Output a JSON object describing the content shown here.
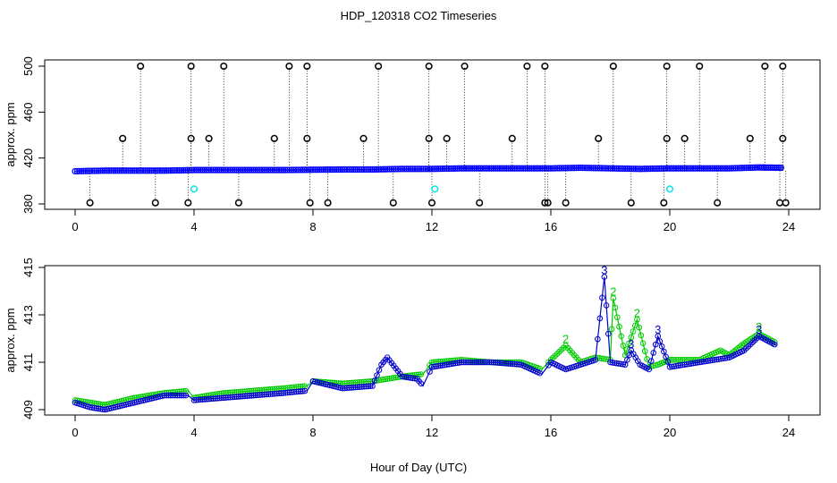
{
  "title": "HDP_120318  CO2 Timeseries",
  "xlabel": "Hour of Day (UTC)",
  "chart_data": [
    {
      "type": "scatter",
      "ylabel": "approx. ppm",
      "xlim": [
        0,
        24
      ],
      "ylim": [
        380,
        500
      ],
      "x_ticks": [
        0,
        4,
        8,
        12,
        16,
        20,
        24
      ],
      "y_ticks": [
        380,
        420,
        460,
        500
      ],
      "grid": false,
      "series": [
        {
          "color": "#0000ff",
          "marker": "circle",
          "x": [
            0,
            1,
            2,
            3,
            4,
            5,
            6,
            7,
            8,
            9,
            10,
            11,
            12,
            13,
            14,
            15,
            16,
            17,
            18,
            19,
            20,
            21,
            22,
            23,
            23.8
          ],
          "y": [
            408.5,
            409,
            409,
            409,
            409.5,
            409.5,
            409.5,
            409.5,
            409.8,
            410,
            410,
            410.5,
            410.5,
            411,
            411,
            411,
            411,
            411.5,
            411,
            410.5,
            411,
            411,
            411,
            411.8,
            411.5
          ]
        },
        {
          "color": "#000000",
          "marker": "circle",
          "x": [
            0.5,
            1.6,
            2.2,
            2.7,
            3.8,
            3.9,
            3.9,
            4.5,
            5.0,
            5.5,
            6.7,
            7.2,
            7.8,
            7.8,
            7.9,
            8.5,
            9.7,
            10.2,
            10.7,
            11.9,
            11.9,
            12.0,
            12.5,
            13.1,
            13.6,
            14.7,
            15.2,
            15.8,
            15.8,
            15.9,
            16.5,
            17.6,
            18.1,
            18.7,
            19.8,
            19.9,
            19.9,
            20.5,
            21.0,
            21.6,
            22.7,
            23.2,
            23.7,
            23.8,
            23.8,
            23.9
          ],
          "y": [
            381,
            437,
            500,
            381,
            381,
            437,
            500,
            437,
            500,
            381,
            437,
            500,
            437,
            500,
            381,
            381,
            437,
            500,
            381,
            437,
            500,
            381,
            437,
            500,
            381,
            437,
            500,
            381,
            500,
            381,
            381,
            437,
            500,
            381,
            381,
            437,
            500,
            437,
            500,
            381,
            437,
            500,
            381,
            437,
            500,
            381
          ]
        },
        {
          "color": "#00e5ee",
          "marker": "circle",
          "x": [
            4.0,
            12.1,
            20.0
          ],
          "y": [
            393,
            393,
            393
          ]
        }
      ]
    },
    {
      "type": "line",
      "ylabel": "approx. ppm",
      "xlim": [
        0,
        24
      ],
      "ylim": [
        409,
        415
      ],
      "x_ticks": [
        0,
        4,
        8,
        12,
        16,
        20,
        24
      ],
      "y_ticks": [
        409,
        411,
        413,
        415
      ],
      "grid": false,
      "series": [
        {
          "label": "3",
          "color": "#0000cc",
          "x": [
            0,
            0.5,
            1,
            2,
            3,
            3.8,
            4,
            5,
            6,
            7,
            7.8,
            8,
            9,
            10,
            10.3,
            10.5,
            11,
            11.5,
            11.7,
            12,
            13,
            14,
            15,
            15.7,
            16,
            16.5,
            17,
            17.5,
            17.8,
            18,
            18.5,
            18.7,
            19,
            19.3,
            19.6,
            20,
            21,
            22,
            22.5,
            23,
            23.6
          ],
          "y": [
            409.3,
            409.1,
            409.0,
            409.3,
            409.6,
            409.6,
            409.4,
            409.5,
            409.6,
            409.7,
            409.8,
            410.2,
            409.9,
            410.0,
            410.9,
            411.2,
            410.4,
            410.3,
            410.0,
            410.8,
            411.0,
            411.0,
            410.9,
            410.5,
            411.0,
            410.7,
            410.9,
            411.1,
            414.6,
            411.0,
            410.9,
            411.5,
            410.9,
            410.7,
            412.1,
            410.8,
            411.0,
            411.2,
            411.5,
            412.1,
            411.7
          ]
        },
        {
          "label": "2",
          "color": "#00cc00",
          "x": [
            0,
            0.5,
            1,
            2,
            3,
            3.8,
            4,
            5,
            6,
            7,
            7.8,
            8,
            9,
            10,
            11,
            11.7,
            12,
            13,
            14,
            15,
            15.7,
            16,
            16.5,
            17,
            17.5,
            18,
            18.1,
            18.5,
            18.9,
            19.3,
            19.6,
            20,
            21,
            21.7,
            22,
            22.5,
            23,
            23.6
          ],
          "y": [
            409.4,
            409.3,
            409.2,
            409.5,
            409.7,
            409.8,
            409.5,
            409.7,
            409.8,
            409.9,
            410.0,
            410.2,
            410.1,
            410.2,
            410.4,
            410.5,
            411.0,
            411.1,
            411.0,
            411.0,
            410.7,
            411.1,
            411.7,
            411.0,
            411.2,
            411.1,
            413.7,
            411.3,
            412.8,
            410.8,
            410.9,
            411.1,
            411.1,
            411.5,
            411.3,
            411.8,
            412.2,
            411.8
          ]
        }
      ]
    }
  ]
}
